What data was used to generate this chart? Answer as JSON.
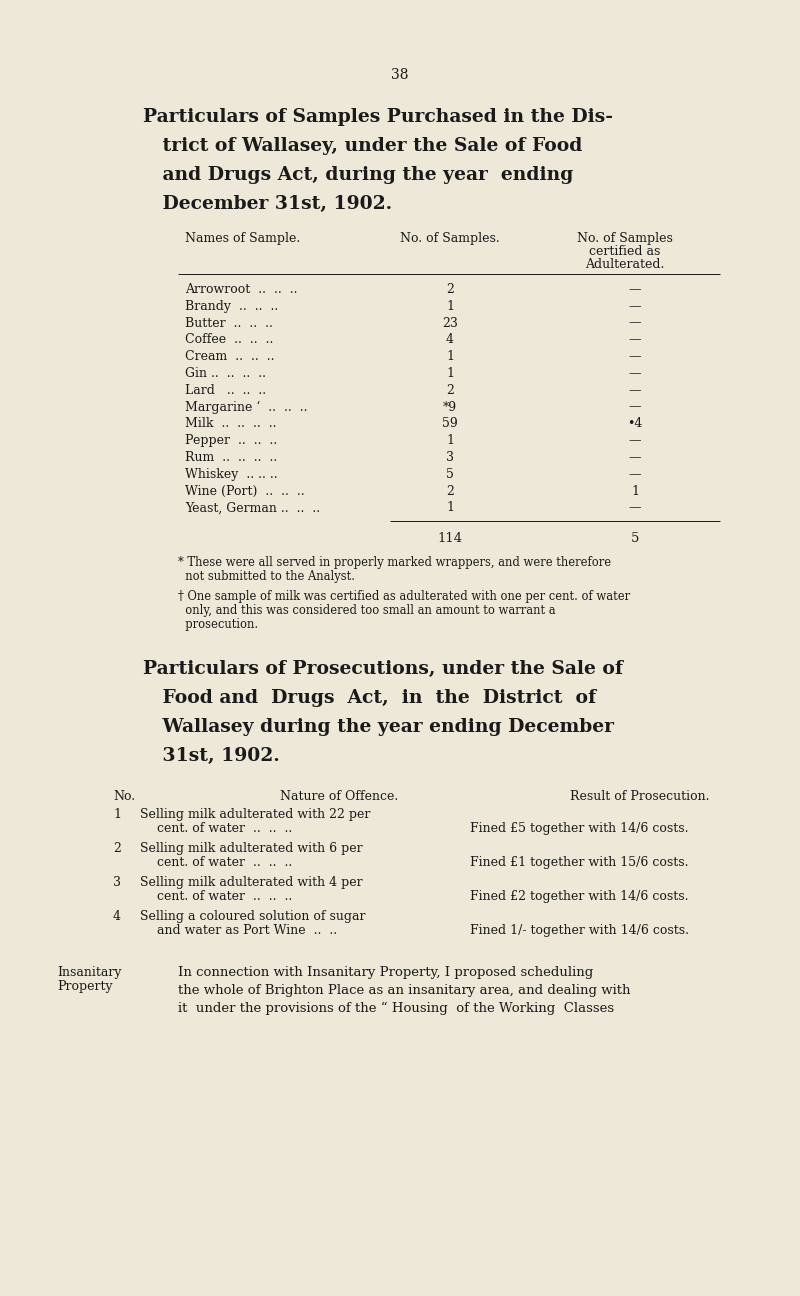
{
  "bg_color": "#ede8d8",
  "text_color": "#1a1a1a",
  "page_number": "38",
  "title1_lines": [
    "Particulars of Samples Purchased in the Dis-",
    "   trict of Wallasey, under the Sale of Food",
    "   and Drugs Act, during the year  ending",
    "   December 31st, 1902."
  ],
  "table1_header": [
    "Names of Sample.",
    "No. of Samples.",
    "No. of Samples\ncertified as\nAdulterated."
  ],
  "table1_rows": [
    [
      "Arrowroot  ..  ..  ..",
      "2",
      "—"
    ],
    [
      "Brandy  ..  ..  ..",
      "1",
      "—"
    ],
    [
      "Butter  ..  ..  ..",
      "23",
      "—"
    ],
    [
      "Coffee  ..  ..  ..",
      "4",
      "—"
    ],
    [
      "Cream  ..  ..  ..",
      "1",
      "—"
    ],
    [
      "Gin ..  ..  ..  ..",
      "1",
      "—"
    ],
    [
      "Lard   ..  ..  ..",
      "2",
      "—"
    ],
    [
      "Margarine ‘  ..  ..  ..",
      "*9",
      "—"
    ],
    [
      "Milk  ..  ..  ..  ..",
      "59",
      "•4"
    ],
    [
      "Pepper  ..  ..  ..",
      "1",
      "—"
    ],
    [
      "Rum  ..  ..  ..  ..",
      "3",
      "—"
    ],
    [
      "Whiskey  .. .. ..",
      "5",
      "—"
    ],
    [
      "Wine (Port)  ..  ..  ..",
      "2",
      "1"
    ],
    [
      "Yeast, German ..  ..  ..",
      "1",
      "—"
    ]
  ],
  "table1_totals": [
    "114",
    "5"
  ],
  "footnote1_lines": [
    "* These were all served in properly marked wrappers, and were therefore",
    "  not submitted to the Analyst."
  ],
  "footnote2_lines": [
    "† One sample of milk was certified as adulterated with one per cent. of water",
    "  only, and this was considered too small an amount to warrant a",
    "  prosecution."
  ],
  "title2_lines": [
    "Particulars of Prosecutions, under the Sale of",
    "   Food and  Drugs  Act,  in  the  District  of",
    "   Wallasey during the year ending December",
    "   31st, 1902."
  ],
  "table2_header": [
    "No.",
    "Nature of Offence.",
    "Result of Prosecution."
  ],
  "table2_rows": [
    {
      "no": "1",
      "offence_line1": "Selling milk adulterated with 22 per",
      "offence_line2": "cent. of water  ..  ..  ..",
      "result": "Fined £5 together with 14/6 costs."
    },
    {
      "no": "2",
      "offence_line1": "Selling milk adulterated with 6 per",
      "offence_line2": "cent. of water  ..  ..  ..",
      "result": "Fined £1 together with 15/6 costs."
    },
    {
      "no": "3",
      "offence_line1": "Selling milk adulterated with 4 per",
      "offence_line2": "cent. of water  ..  ..  ..",
      "result": "Fined £2 together with 14/6 costs."
    },
    {
      "no": "4",
      "offence_line1": "Selling a coloured solution of sugar",
      "offence_line2": "and water as Port Wine  ..  ..",
      "result": "Fined 1/- together with 14/6 costs."
    }
  ],
  "insanitary_label_lines": [
    "Insanitary",
    "Property"
  ],
  "insanitary_text_lines": [
    "In connection with Insanitary Property, I proposed scheduling",
    "the whole of Brighton Place as an insanitary area, and dealing with",
    "it  under the provisions of the “ Housing  of the Working  Classes"
  ]
}
